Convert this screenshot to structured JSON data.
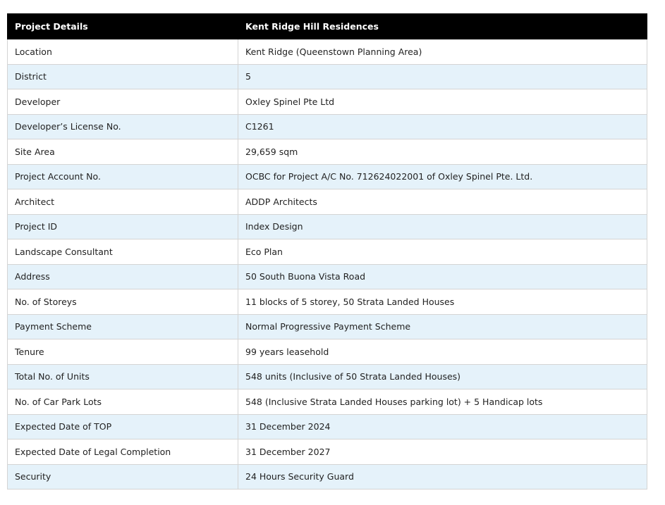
{
  "table": {
    "header": [
      "Project Details",
      "Kent Ridge Hill Residences"
    ],
    "rows": [
      [
        "Location",
        "Kent Ridge (Queenstown Planning Area)"
      ],
      [
        "District",
        "5"
      ],
      [
        "Developer",
        "Oxley Spinel Pte Ltd"
      ],
      [
        "Developer’s License No.",
        "C1261"
      ],
      [
        "Site Area",
        "29,659 sqm"
      ],
      [
        "Project Account No.",
        "OCBC for Project A/C No. 712624022001 of Oxley Spinel Pte. Ltd."
      ],
      [
        "Architect",
        "ADDP Architects"
      ],
      [
        "Project ID",
        "Index Design"
      ],
      [
        "Landscape Consultant",
        "Eco Plan"
      ],
      [
        "Address",
        "50 South Buona Vista Road"
      ],
      [
        "No. of Storeys",
        "11 blocks of 5 storey, 50 Strata Landed Houses"
      ],
      [
        "Payment Scheme",
        "Normal Progressive Payment Scheme"
      ],
      [
        "Tenure",
        "99 years leasehold"
      ],
      [
        "Total No. of Units",
        "548 units (Inclusive of 50 Strata Landed Houses)"
      ],
      [
        "No. of Car Park Lots",
        "548 (Inclusive Strata Landed Houses parking lot) + 5 Handicap lots"
      ],
      [
        "Expected Date of TOP",
        "31 December 2024"
      ],
      [
        "Expected Date of Legal Completion",
        "31 December 2027"
      ],
      [
        "Security",
        "24 Hours Security Guard"
      ]
    ]
  }
}
